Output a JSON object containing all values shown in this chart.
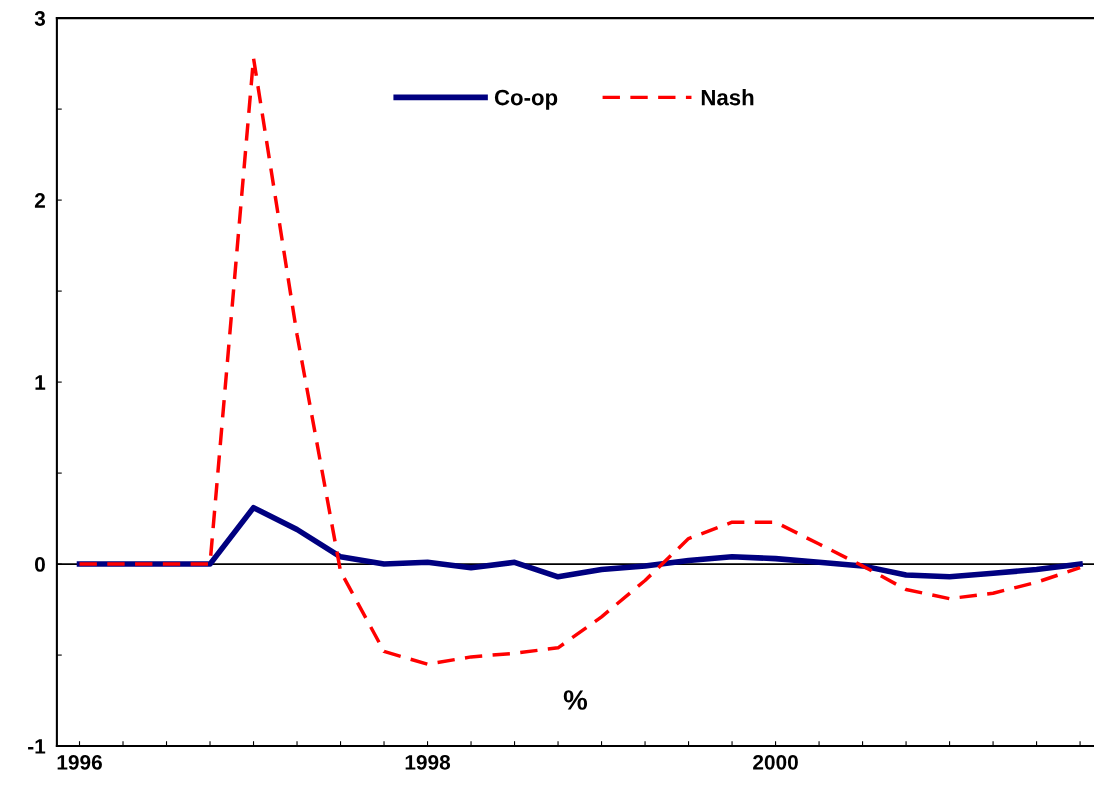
{
  "chart_data": {
    "type": "line",
    "x": [
      1996,
      1996.25,
      1996.5,
      1996.75,
      1997,
      1997.25,
      1997.5,
      1997.75,
      1998,
      1998.25,
      1998.5,
      1998.75,
      1999,
      1999.25,
      1999.5,
      1999.75,
      2000,
      2000.25,
      2000.5,
      2000.75,
      2001,
      2001.25,
      2001.5,
      2001.75
    ],
    "series": [
      {
        "name": "Co-op",
        "color": "#000080",
        "line_style": "solid",
        "values": [
          0,
          0,
          0,
          0,
          0.31,
          0.19,
          0.04,
          0.0,
          0.01,
          -0.02,
          0.01,
          -0.07,
          -0.03,
          -0.01,
          0.02,
          0.04,
          0.03,
          0.01,
          -0.01,
          -0.06,
          -0.07,
          -0.05,
          -0.03,
          0.0
        ]
      },
      {
        "name": "Nash",
        "color": "#ff0000",
        "line_style": "dashed",
        "values": [
          0,
          0,
          0,
          0,
          2.78,
          1.26,
          -0.04,
          -0.48,
          -0.55,
          -0.51,
          -0.49,
          -0.46,
          -0.29,
          -0.09,
          0.14,
          0.23,
          0.23,
          0.11,
          -0.01,
          -0.14,
          -0.19,
          -0.16,
          -0.1,
          -0.02
        ]
      }
    ],
    "xlim": [
      1995.87,
      2001.83
    ],
    "xticks": [
      1996,
      {
        "value": 1996.25,
        "label": null
      },
      {
        "value": 1996.5,
        "label": null
      },
      {
        "value": 1996.75,
        "label": null
      },
      {
        "value": 1997,
        "label": null
      },
      {
        "value": 1997.25,
        "label": null
      },
      {
        "value": 1997.5,
        "label": null
      },
      {
        "value": 1997.75,
        "label": null
      },
      1998,
      {
        "value": 1998.25,
        "label": null
      },
      {
        "value": 1998.5,
        "label": null
      },
      {
        "value": 1998.75,
        "label": null
      },
      {
        "value": 1999,
        "label": null
      },
      {
        "value": 1999.25,
        "label": null
      },
      {
        "value": 1999.5,
        "label": null
      },
      {
        "value": 1999.75,
        "label": null
      },
      2000,
      {
        "value": 2000.25,
        "label": null
      },
      {
        "value": 2000.5,
        "label": null
      },
      {
        "value": 2000.75,
        "label": null
      },
      {
        "value": 2001,
        "label": null
      },
      {
        "value": 2001.25,
        "label": null
      },
      {
        "value": 2001.5,
        "label": null
      },
      {
        "value": 2001.75,
        "label": null
      }
    ],
    "ylim": [
      -1,
      3
    ],
    "yticks": [
      -1,
      {
        "value": -0.5,
        "label": null
      },
      0,
      {
        "value": 0.5,
        "label": null
      },
      1,
      {
        "value": 1.5,
        "label": null
      },
      2,
      {
        "value": 2.5,
        "label": null
      },
      3
    ],
    "ref_lines": [
      {
        "axis": "y",
        "value": 0,
        "color": "#000000",
        "line_style": "solid"
      }
    ],
    "annotations": [
      "%"
    ],
    "grid": false,
    "legend": "top"
  }
}
